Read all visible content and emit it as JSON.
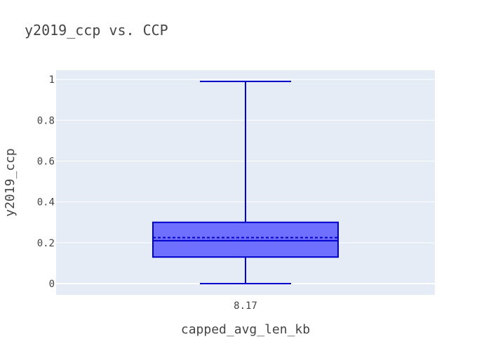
{
  "chart_data": {
    "type": "box",
    "title": "y2019_ccp vs. CCP",
    "xlabel": "capped_avg_len_kb",
    "ylabel": "y2019_ccp",
    "categories": [
      "8.17"
    ],
    "ylim": [
      -0.055,
      1.045
    ],
    "yticks": [
      0,
      0.2,
      0.4,
      0.6,
      0.8,
      1
    ],
    "ytick_labels": [
      "0",
      "0.2",
      "0.4",
      "0.6",
      "0.8",
      "1"
    ],
    "grid": true,
    "legend": "none",
    "box": {
      "min": 0,
      "q1": 0.13,
      "median": 0.21,
      "mean": 0.225,
      "q3": 0.3,
      "max": 0.99
    },
    "colors": {
      "box_fill": "#7070ff",
      "box_line": "#0000cc",
      "plot_bg": "#e5ecf6",
      "grid": "#ffffff",
      "text": "#444444",
      "title": "#444444"
    }
  }
}
